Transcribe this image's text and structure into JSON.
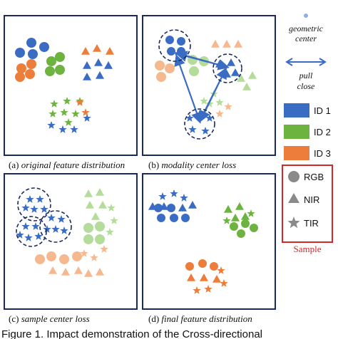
{
  "panels": [
    {
      "id": "a",
      "caption_prefix": "(a) ",
      "caption_text": "original feature distribution"
    },
    {
      "id": "b",
      "caption_prefix": "(b) ",
      "caption_text": "modality center loss"
    },
    {
      "id": "c",
      "caption_prefix": "(c) ",
      "caption_text": "sample center loss"
    },
    {
      "id": "d",
      "caption_prefix": "(d)  ",
      "caption_text": "final feature distribution"
    }
  ],
  "legend": {
    "geometric_center_line1": "geometric",
    "geometric_center_line2": "center",
    "pull_close_line1": "pull",
    "pull_close_line2": "close",
    "ids": [
      {
        "label": "ID 1",
        "color": "#3b6cc4"
      },
      {
        "label": "ID 2",
        "color": "#6db33f"
      },
      {
        "label": "ID 3",
        "color": "#ec7d3a"
      }
    ],
    "modalities": [
      {
        "label": "RGB",
        "icon": "circle-icon"
      },
      {
        "label": "NIR",
        "icon": "triangle-icon"
      },
      {
        "label": "TIR",
        "icon": "star-icon"
      }
    ],
    "sample_label": "Sample"
  },
  "figure_caption": "Figure 1.   Impact demonstration of the Cross-directional",
  "colors": {
    "id1": "#3b6cc4",
    "id2": "#6db33f",
    "id3": "#ec7d3a",
    "id1_light": "#8faedf",
    "id2_light": "#b4dc9a",
    "id3_light": "#f6b88f",
    "sample_box": "#d62728",
    "panel_border": "#1a2a5e"
  }
}
